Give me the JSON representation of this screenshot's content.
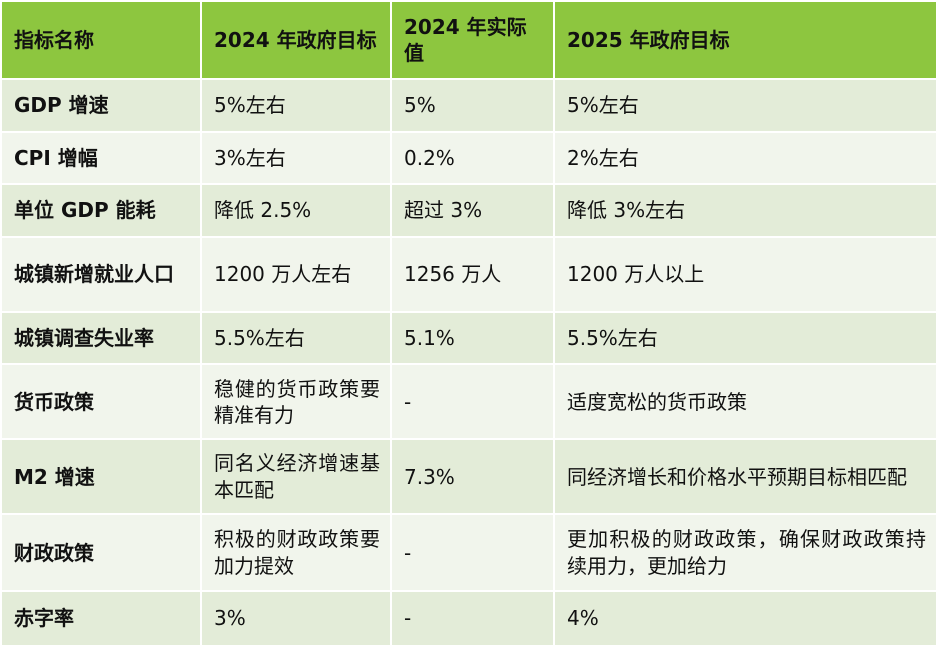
{
  "table": {
    "headers": [
      "指标名称",
      "2024 年政府目标",
      "2024 年实际值",
      "2025 年政府目标"
    ],
    "rows": [
      [
        "GDP 增速",
        "5%左右",
        "5%",
        "5%左右"
      ],
      [
        "CPI 增幅",
        "3%左右",
        "0.2%",
        "2%左右"
      ],
      [
        "单位 GDP 能耗",
        "降低 2.5%",
        "超过 3%",
        "降低 3%左右"
      ],
      [
        "城镇新增就业人口",
        "1200 万人左右",
        "1256 万人",
        "1200 万人以上"
      ],
      [
        "城镇调查失业率",
        "5.5%左右",
        "5.1%",
        "5.5%左右"
      ],
      [
        "货币政策",
        "稳健的货币政策要精准有力",
        "-",
        "适度宽松的货币政策"
      ],
      [
        "M2 增速",
        "同名义经济增速基本匹配",
        "7.3%",
        "同经济增长和价格水平预期目标相匹配"
      ],
      [
        "财政政策",
        "积极的财政政策要加力提效",
        "-",
        "更加积极的财政政策，确保财政政策持续用力，更加给力"
      ],
      [
        "赤字率",
        "3%",
        "-",
        "4%"
      ]
    ]
  },
  "colors": {
    "header_bg": "#8dc63f",
    "row_odd_bg": "#e3ecd8",
    "row_even_bg": "#f1f5ec",
    "border": "#ffffff"
  }
}
